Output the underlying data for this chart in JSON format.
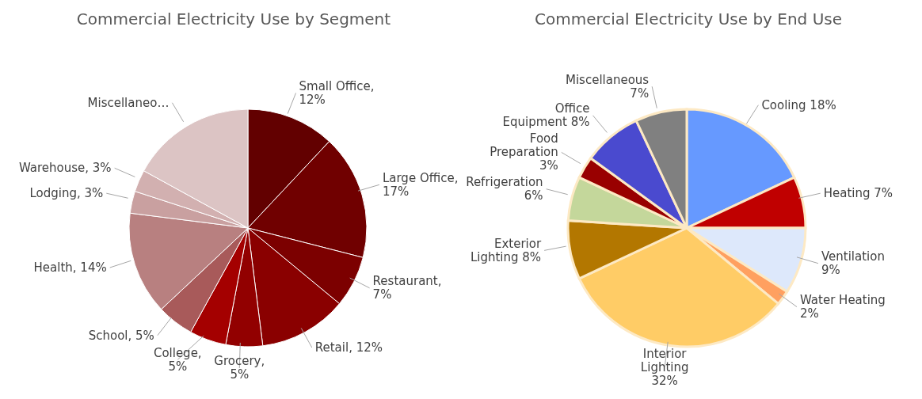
{
  "chart_data": [
    {
      "type": "pie",
      "title": "Commercial Electricity Use by Segment",
      "legend": false,
      "categories": [
        "Small Office",
        "Large Office",
        "Restaurant",
        "Retail",
        "Grocery",
        "College",
        "School",
        "Health",
        "Lodging",
        "Warehouse",
        "Miscellaneo…"
      ],
      "values": [
        12,
        17,
        7,
        12,
        5,
        5,
        5,
        14,
        3,
        3,
        17
      ],
      "colors": [
        "#620000",
        "#700000",
        "#7c0000",
        "#8a0000",
        "#920000",
        "#a40000",
        "#a85a5a",
        "#b88080",
        "#c9a0a0",
        "#d2b0b0",
        "#dcc4c4"
      ],
      "value_labels": [
        ", 12%",
        ", 17%",
        ", 7%",
        ", 12%",
        ", 5%",
        ", 5%",
        ", 5%",
        ", 14%",
        ", 3%",
        ", 3%",
        null
      ]
    },
    {
      "type": "pie",
      "title": "Commercial Electricity Use by End Use",
      "legend": false,
      "categories": [
        "Cooling",
        "Heating",
        "Ventilation",
        "Water Heating",
        "Interior Lighting",
        "Exterior Lighting",
        "Refrigeration",
        "Food Preparation",
        "Office Equipment",
        "Miscellaneous"
      ],
      "values": [
        18,
        7,
        9,
        2,
        32,
        8,
        6,
        3,
        8,
        7
      ],
      "colors": [
        "#6699ff",
        "#c00000",
        "#dde8fb",
        "#ffa060",
        "#ffcc66",
        "#b37700",
        "#c4d79b",
        "#990000",
        "#4a4acf",
        "#808080"
      ],
      "value_labels": [
        "18%",
        "7%",
        "9%",
        "2%",
        "32%",
        "8%",
        "6%",
        "3%",
        "8%",
        "7%"
      ]
    }
  ]
}
